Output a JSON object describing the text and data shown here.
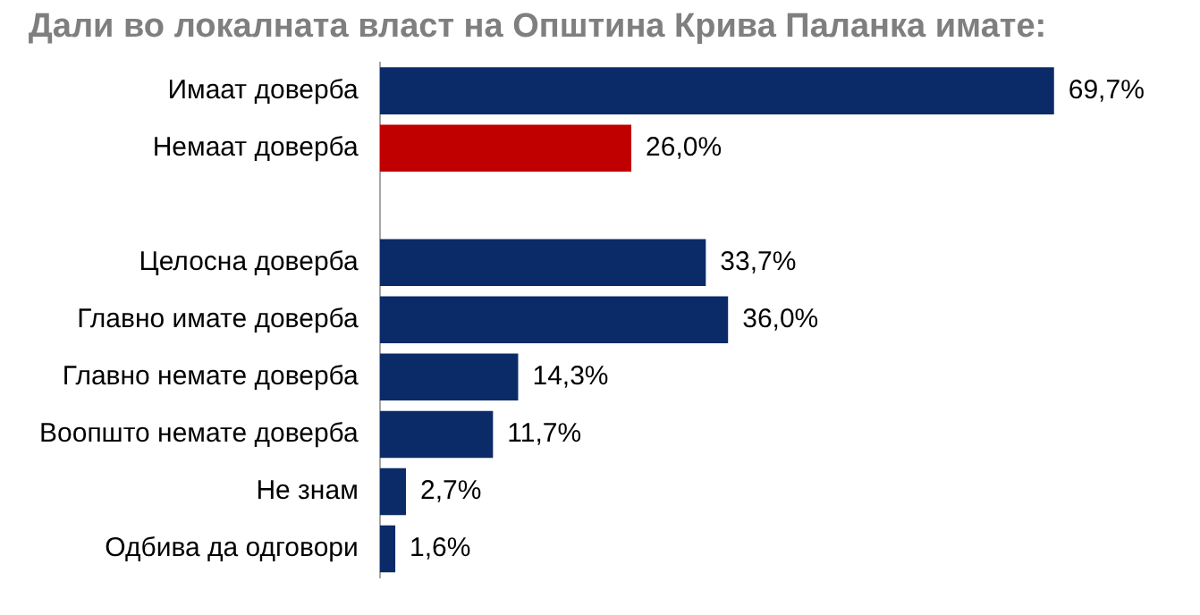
{
  "chart_data": {
    "type": "bar",
    "orientation": "horizontal",
    "title": "Дали во локалната власт на Општина Крива Паланка имате:",
    "categories": [
      "Имаат доверба",
      "Немаат доверба",
      null,
      "Целосна доверба",
      "Главно имате доверба",
      "Главно немате доверба",
      "Воопшто немате доверба",
      "Не знам",
      "Одбива да одговори"
    ],
    "values": [
      69.7,
      26.0,
      null,
      33.7,
      36.0,
      14.3,
      11.7,
      2.7,
      1.6
    ],
    "colors": [
      "#0b2b68",
      "#c00000",
      null,
      "#0b2b68",
      "#0b2b68",
      "#0b2b68",
      "#0b2b68",
      "#0b2b68",
      "#0b2b68"
    ],
    "value_labels": [
      "69,7%",
      "26,0%",
      null,
      "33,7%",
      "36,0%",
      "14,3%",
      "11,7%",
      "2,7%",
      "1,6%"
    ],
    "tick_labels": "y",
    "grid": false,
    "legend": false
  }
}
